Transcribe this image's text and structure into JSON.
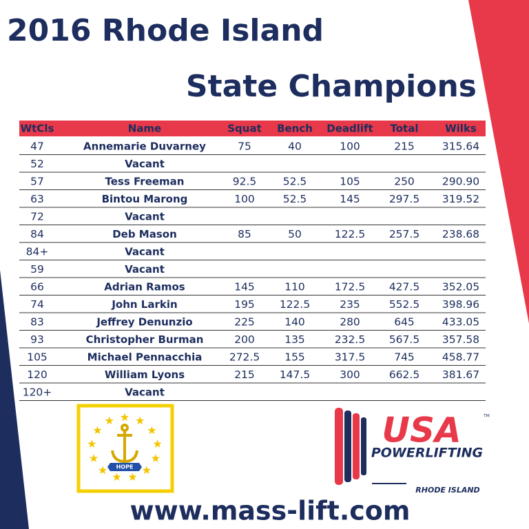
{
  "header": {
    "title_line1": "2016 Rhode Island",
    "title_line2": "State Champions"
  },
  "table": {
    "columns": [
      "WtCls",
      "Name",
      "Squat",
      "Bench",
      "Deadlift",
      "Total",
      "Wilks"
    ],
    "rows": [
      [
        "47",
        "Annemarie Duvarney",
        "75",
        "40",
        "100",
        "215",
        "315.64"
      ],
      [
        "52",
        "Vacant"
      ],
      [
        "57",
        "Tess Freeman",
        "92.5",
        "52.5",
        "105",
        "250",
        "290.90"
      ],
      [
        "63",
        "Bintou Marong",
        "100",
        "52.5",
        "145",
        "297.5",
        "319.52"
      ],
      [
        "72",
        "Vacant"
      ],
      [
        "84",
        "Deb Mason",
        "85",
        "50",
        "122.5",
        "257.5",
        "238.68"
      ],
      [
        "84+",
        "Vacant"
      ],
      [
        "59",
        "Vacant"
      ],
      [
        "66",
        "Adrian Ramos",
        "145",
        "110",
        "172.5",
        "427.5",
        "352.05"
      ],
      [
        "74",
        "John Larkin",
        "195",
        "122.5",
        "235",
        "552.5",
        "398.96"
      ],
      [
        "83",
        "Jeffrey Denunzio",
        "225",
        "140",
        "280",
        "645",
        "433.05"
      ],
      [
        "93",
        "Christopher Burman",
        "200",
        "135",
        "232.5",
        "567.5",
        "357.58"
      ],
      [
        "105",
        "Michael Pennacchia",
        "272.5",
        "155",
        "317.5",
        "745",
        "458.77"
      ],
      [
        "120",
        "William Lyons",
        "215",
        "147.5",
        "300",
        "662.5",
        "381.67"
      ],
      [
        "120+",
        "Vacant"
      ]
    ]
  },
  "flag": {
    "motto": "HOPE"
  },
  "logo": {
    "usa": "USA",
    "tm": "TM",
    "powerlifting": "POWERLIFTING",
    "state": "RHODE ISLAND"
  },
  "footer": {
    "website": "www.mass-lift.com"
  }
}
